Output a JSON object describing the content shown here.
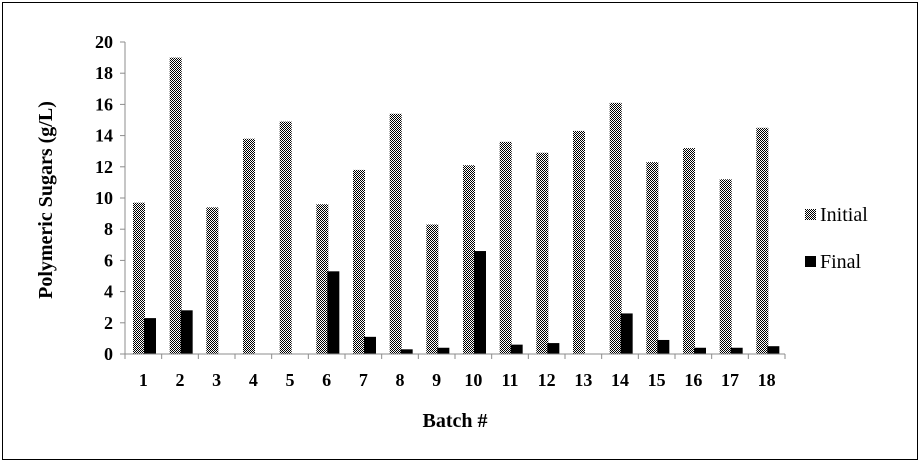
{
  "chart_data": {
    "type": "bar",
    "title": "",
    "xlabel": "Batch #",
    "ylabel": "Polymeric Sugars (g/L)",
    "ylim": [
      0,
      20
    ],
    "yticks": [
      0,
      2,
      4,
      6,
      8,
      10,
      12,
      14,
      16,
      18,
      20
    ],
    "categories": [
      "1",
      "2",
      "3",
      "4",
      "5",
      "6",
      "7",
      "8",
      "9",
      "10",
      "11",
      "12",
      "13",
      "14",
      "15",
      "16",
      "17",
      "18"
    ],
    "series": [
      {
        "name": "Initial",
        "pattern": "checkered",
        "values": [
          9.7,
          19.0,
          9.4,
          13.8,
          14.9,
          9.6,
          11.8,
          15.4,
          8.3,
          12.1,
          13.6,
          12.9,
          14.3,
          16.1,
          12.3,
          13.2,
          11.2,
          14.5
        ]
      },
      {
        "name": "Final",
        "color": "#000000",
        "values": [
          2.3,
          2.8,
          0,
          0,
          0,
          5.3,
          1.1,
          0.3,
          0.4,
          6.6,
          0.6,
          0.7,
          0,
          2.6,
          0.9,
          0.4,
          0.4,
          0.5
        ]
      }
    ],
    "grid": false,
    "legend": "right"
  }
}
